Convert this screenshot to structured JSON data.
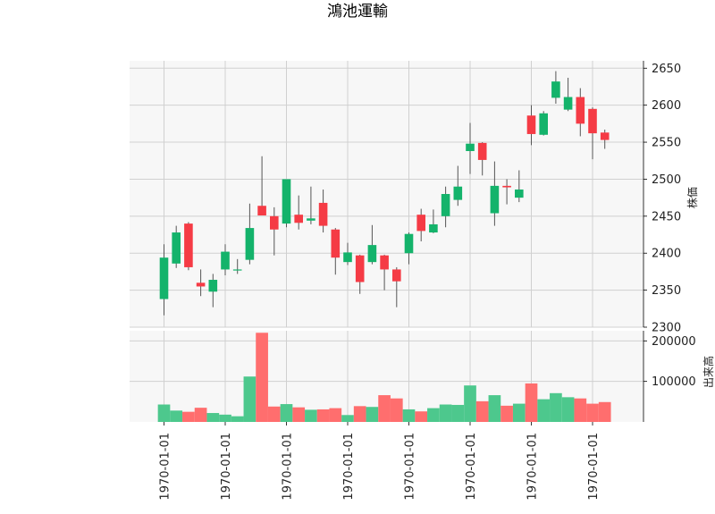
{
  "chart_data": {
    "type": "candlestick",
    "title": "鴻池運輸",
    "price_ylabel": "株価",
    "volume_ylabel": "出来高",
    "price_ylim": [
      2300,
      2660
    ],
    "price_yticks": [
      2300,
      2350,
      2400,
      2450,
      2500,
      2550,
      2600,
      2650
    ],
    "volume_ylim": [
      0,
      225000
    ],
    "volume_yticks": [
      100000,
      200000
    ],
    "volume_ytick_labels": [
      "100000",
      "200000"
    ],
    "xtick_labels": [
      "1970-01-01",
      "1970-01-01",
      "1970-01-01",
      "1970-01-01",
      "1970-01-01",
      "1970-01-01",
      "1970-01-01",
      "1970-01-01"
    ],
    "xtick_positions": [
      0,
      5,
      10,
      15,
      20,
      25,
      30,
      35
    ],
    "grid": true,
    "up_color": "#14b36b",
    "down_color": "#f53b45",
    "up_volume_color": "#4dc88d",
    "down_volume_color": "#ff6e6e",
    "candles": [
      {
        "open": 2338,
        "high": 2412,
        "low": 2316,
        "close": 2394
      },
      {
        "open": 2386,
        "high": 2437,
        "low": 2380,
        "close": 2428
      },
      {
        "open": 2440,
        "high": 2442,
        "low": 2377,
        "close": 2381
      },
      {
        "open": 2360,
        "high": 2378,
        "low": 2342,
        "close": 2355
      },
      {
        "open": 2348,
        "high": 2372,
        "low": 2327,
        "close": 2364
      },
      {
        "open": 2378,
        "high": 2412,
        "low": 2370,
        "close": 2402
      },
      {
        "open": 2378,
        "high": 2392,
        "low": 2372,
        "close": 2378
      },
      {
        "open": 2391,
        "high": 2467,
        "low": 2385,
        "close": 2434
      },
      {
        "open": 2464,
        "high": 2531,
        "low": 2452,
        "close": 2451
      },
      {
        "open": 2450,
        "high": 2462,
        "low": 2397,
        "close": 2432
      },
      {
        "open": 2440,
        "high": 2500,
        "low": 2435,
        "close": 2500
      },
      {
        "open": 2452,
        "high": 2478,
        "low": 2432,
        "close": 2441
      },
      {
        "open": 2444,
        "high": 2490,
        "low": 2439,
        "close": 2447
      },
      {
        "open": 2468,
        "high": 2486,
        "low": 2428,
        "close": 2437
      },
      {
        "open": 2432,
        "high": 2434,
        "low": 2371,
        "close": 2394
      },
      {
        "open": 2388,
        "high": 2414,
        "low": 2384,
        "close": 2401
      },
      {
        "open": 2397,
        "high": 2398,
        "low": 2345,
        "close": 2361
      },
      {
        "open": 2388,
        "high": 2438,
        "low": 2385,
        "close": 2411
      },
      {
        "open": 2397,
        "high": 2398,
        "low": 2350,
        "close": 2378
      },
      {
        "open": 2378,
        "high": 2381,
        "low": 2327,
        "close": 2362
      },
      {
        "open": 2400,
        "high": 2428,
        "low": 2385,
        "close": 2426
      },
      {
        "open": 2452,
        "high": 2460,
        "low": 2416,
        "close": 2430
      },
      {
        "open": 2428,
        "high": 2459,
        "low": 2427,
        "close": 2439
      },
      {
        "open": 2450,
        "high": 2490,
        "low": 2435,
        "close": 2480
      },
      {
        "open": 2472,
        "high": 2518,
        "low": 2464,
        "close": 2490
      },
      {
        "open": 2538,
        "high": 2576,
        "low": 2507,
        "close": 2548
      },
      {
        "open": 2549,
        "high": 2550,
        "low": 2505,
        "close": 2526
      },
      {
        "open": 2454,
        "high": 2524,
        "low": 2437,
        "close": 2491
      },
      {
        "open": 2491,
        "high": 2500,
        "low": 2466,
        "close": 2489
      },
      {
        "open": 2475,
        "high": 2512,
        "low": 2469,
        "close": 2486
      },
      {
        "open": 2586,
        "high": 2600,
        "low": 2546,
        "close": 2561
      },
      {
        "open": 2560,
        "high": 2592,
        "low": 2559,
        "close": 2589
      },
      {
        "open": 2610,
        "high": 2646,
        "low": 2602,
        "close": 2632
      },
      {
        "open": 2594,
        "high": 2637,
        "low": 2592,
        "close": 2611
      },
      {
        "open": 2611,
        "high": 2623,
        "low": 2558,
        "close": 2575
      },
      {
        "open": 2595,
        "high": 2597,
        "low": 2527,
        "close": 2562
      },
      {
        "open": 2563,
        "high": 2567,
        "low": 2541,
        "close": 2553
      }
    ],
    "volume": [
      43000,
      28000,
      25000,
      35000,
      22000,
      18000,
      14000,
      112000,
      220000,
      38000,
      44000,
      36000,
      30000,
      31000,
      34000,
      17000,
      39000,
      37000,
      66000,
      58000,
      31000,
      26000,
      34000,
      43000,
      42000,
      90000,
      51000,
      66000,
      40000,
      45000,
      95000,
      56000,
      71000,
      61000,
      58000,
      45000,
      49000
    ]
  }
}
